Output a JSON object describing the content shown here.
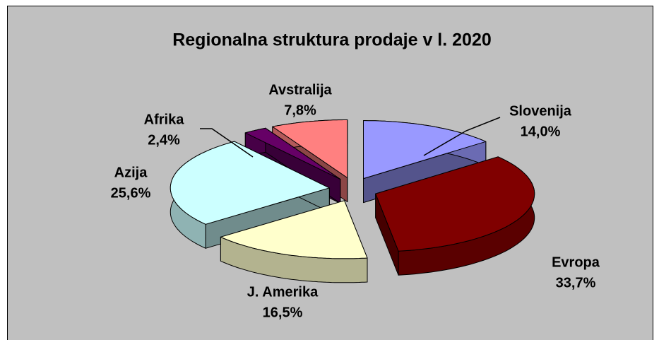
{
  "chart_data": {
    "type": "pie",
    "title": "Regionalna struktura prodaje v l. 2020",
    "categories": [
      "Slovenija",
      "Evropa",
      "J. Amerika",
      "Azija",
      "Afrika",
      "Avstralija"
    ],
    "values": [
      14.0,
      33.7,
      16.5,
      25.6,
      2.4,
      7.8
    ],
    "value_labels": [
      "14,0%",
      "33,7%",
      "16,5%",
      "25,6%",
      "2,4%",
      "7,8%"
    ],
    "colors": [
      "#9999ff",
      "#800000",
      "#ffffcc",
      "#ccffff",
      "#660066",
      "#ff8080"
    ]
  }
}
